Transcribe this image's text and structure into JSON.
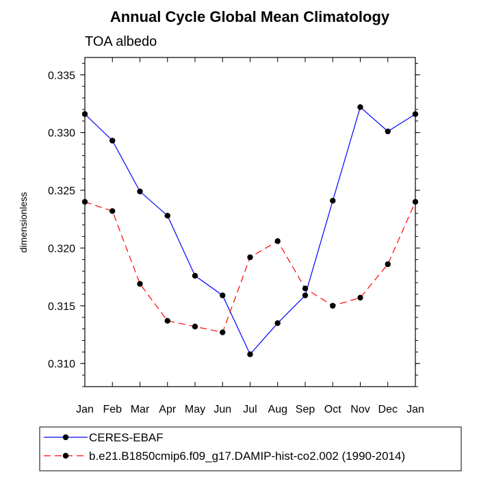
{
  "chart_data": {
    "type": "line",
    "title": "Annual Cycle Global Mean Climatology",
    "subtitle": "TOA albedo",
    "xlabel": "",
    "ylabel": "dimensionless",
    "categories": [
      "Jan",
      "Feb",
      "Mar",
      "Apr",
      "May",
      "Jun",
      "Jul",
      "Aug",
      "Sep",
      "Oct",
      "Nov",
      "Dec",
      "Jan"
    ],
    "ylim": [
      0.308,
      0.3365
    ],
    "yticks": [
      "0.310",
      "0.315",
      "0.320",
      "0.325",
      "0.330",
      "0.335"
    ],
    "grid": false,
    "legend_position": "bottom",
    "series": [
      {
        "name": "CERES-EBAF",
        "color": "#0000ff",
        "dash": "solid",
        "values": [
          0.3316,
          0.3293,
          0.3249,
          0.3228,
          0.3176,
          0.3159,
          0.3108,
          0.3135,
          0.3159,
          0.3241,
          0.3322,
          0.3301,
          0.3316
        ]
      },
      {
        "name": "b.e21.B1850cmip6.f09_g17.DAMIP-hist-co2.002 (1990-2014)",
        "color": "#ff0000",
        "dash": "dashed",
        "values": [
          0.324,
          0.3232,
          0.3169,
          0.3137,
          0.3132,
          0.3127,
          0.3192,
          0.3206,
          0.3165,
          0.315,
          0.3157,
          0.3186,
          0.324
        ]
      }
    ]
  }
}
